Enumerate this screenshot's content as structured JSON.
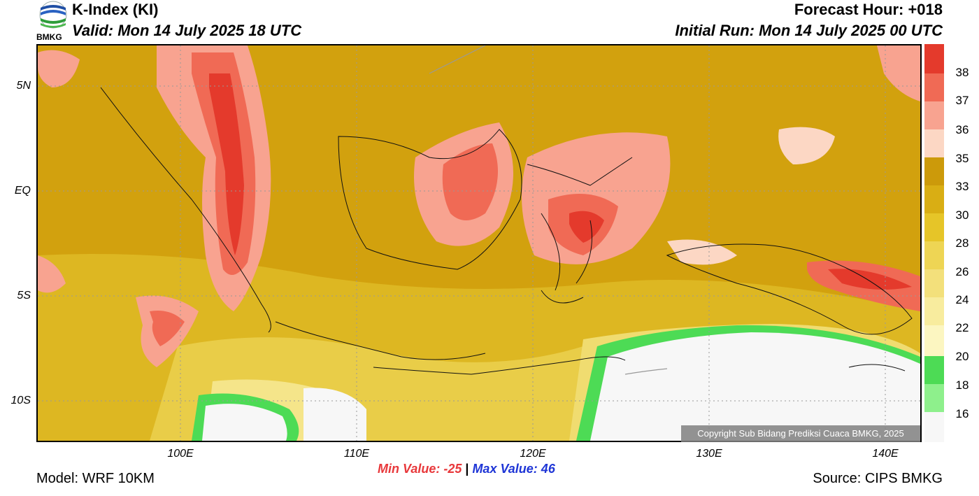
{
  "header": {
    "title": "K-Index (KI)",
    "valid": "Valid: Mon 14 July 2025 18 UTC",
    "forecast_hour": "Forecast Hour: +018",
    "initial_run": "Initial Run: Mon 14 July 2025 00 UTC",
    "logo_text": "BMKG"
  },
  "axes": {
    "lat_labels": [
      "5N",
      "EQ",
      "5S",
      "10S"
    ],
    "lon_labels": [
      "100E",
      "110E",
      "120E",
      "130E",
      "140E"
    ]
  },
  "colorbar": {
    "labels": [
      "38",
      "37",
      "36",
      "35",
      "33",
      "30",
      "28",
      "26",
      "24",
      "22",
      "20",
      "18",
      "16"
    ],
    "colors": [
      "#e43a2c",
      "#f06a55",
      "#f8a390",
      "#fcd7c4",
      "#cc9a0a",
      "#d9ae14",
      "#e6c528",
      "#eed554",
      "#f3e07b",
      "#f8ec9e",
      "#fcf6c1",
      "#4ddb55",
      "#8ef08c",
      "#f7f7f7"
    ]
  },
  "footer": {
    "copyright": "Copyright Sub Bidang Prediksi Cuaca BMKG, 2025",
    "min_value": "Min Value: -25",
    "separator": "|",
    "max_value": "Max Value:  46",
    "model": "Model: WRF 10KM",
    "source": "Source: CIPS BMKG"
  }
}
